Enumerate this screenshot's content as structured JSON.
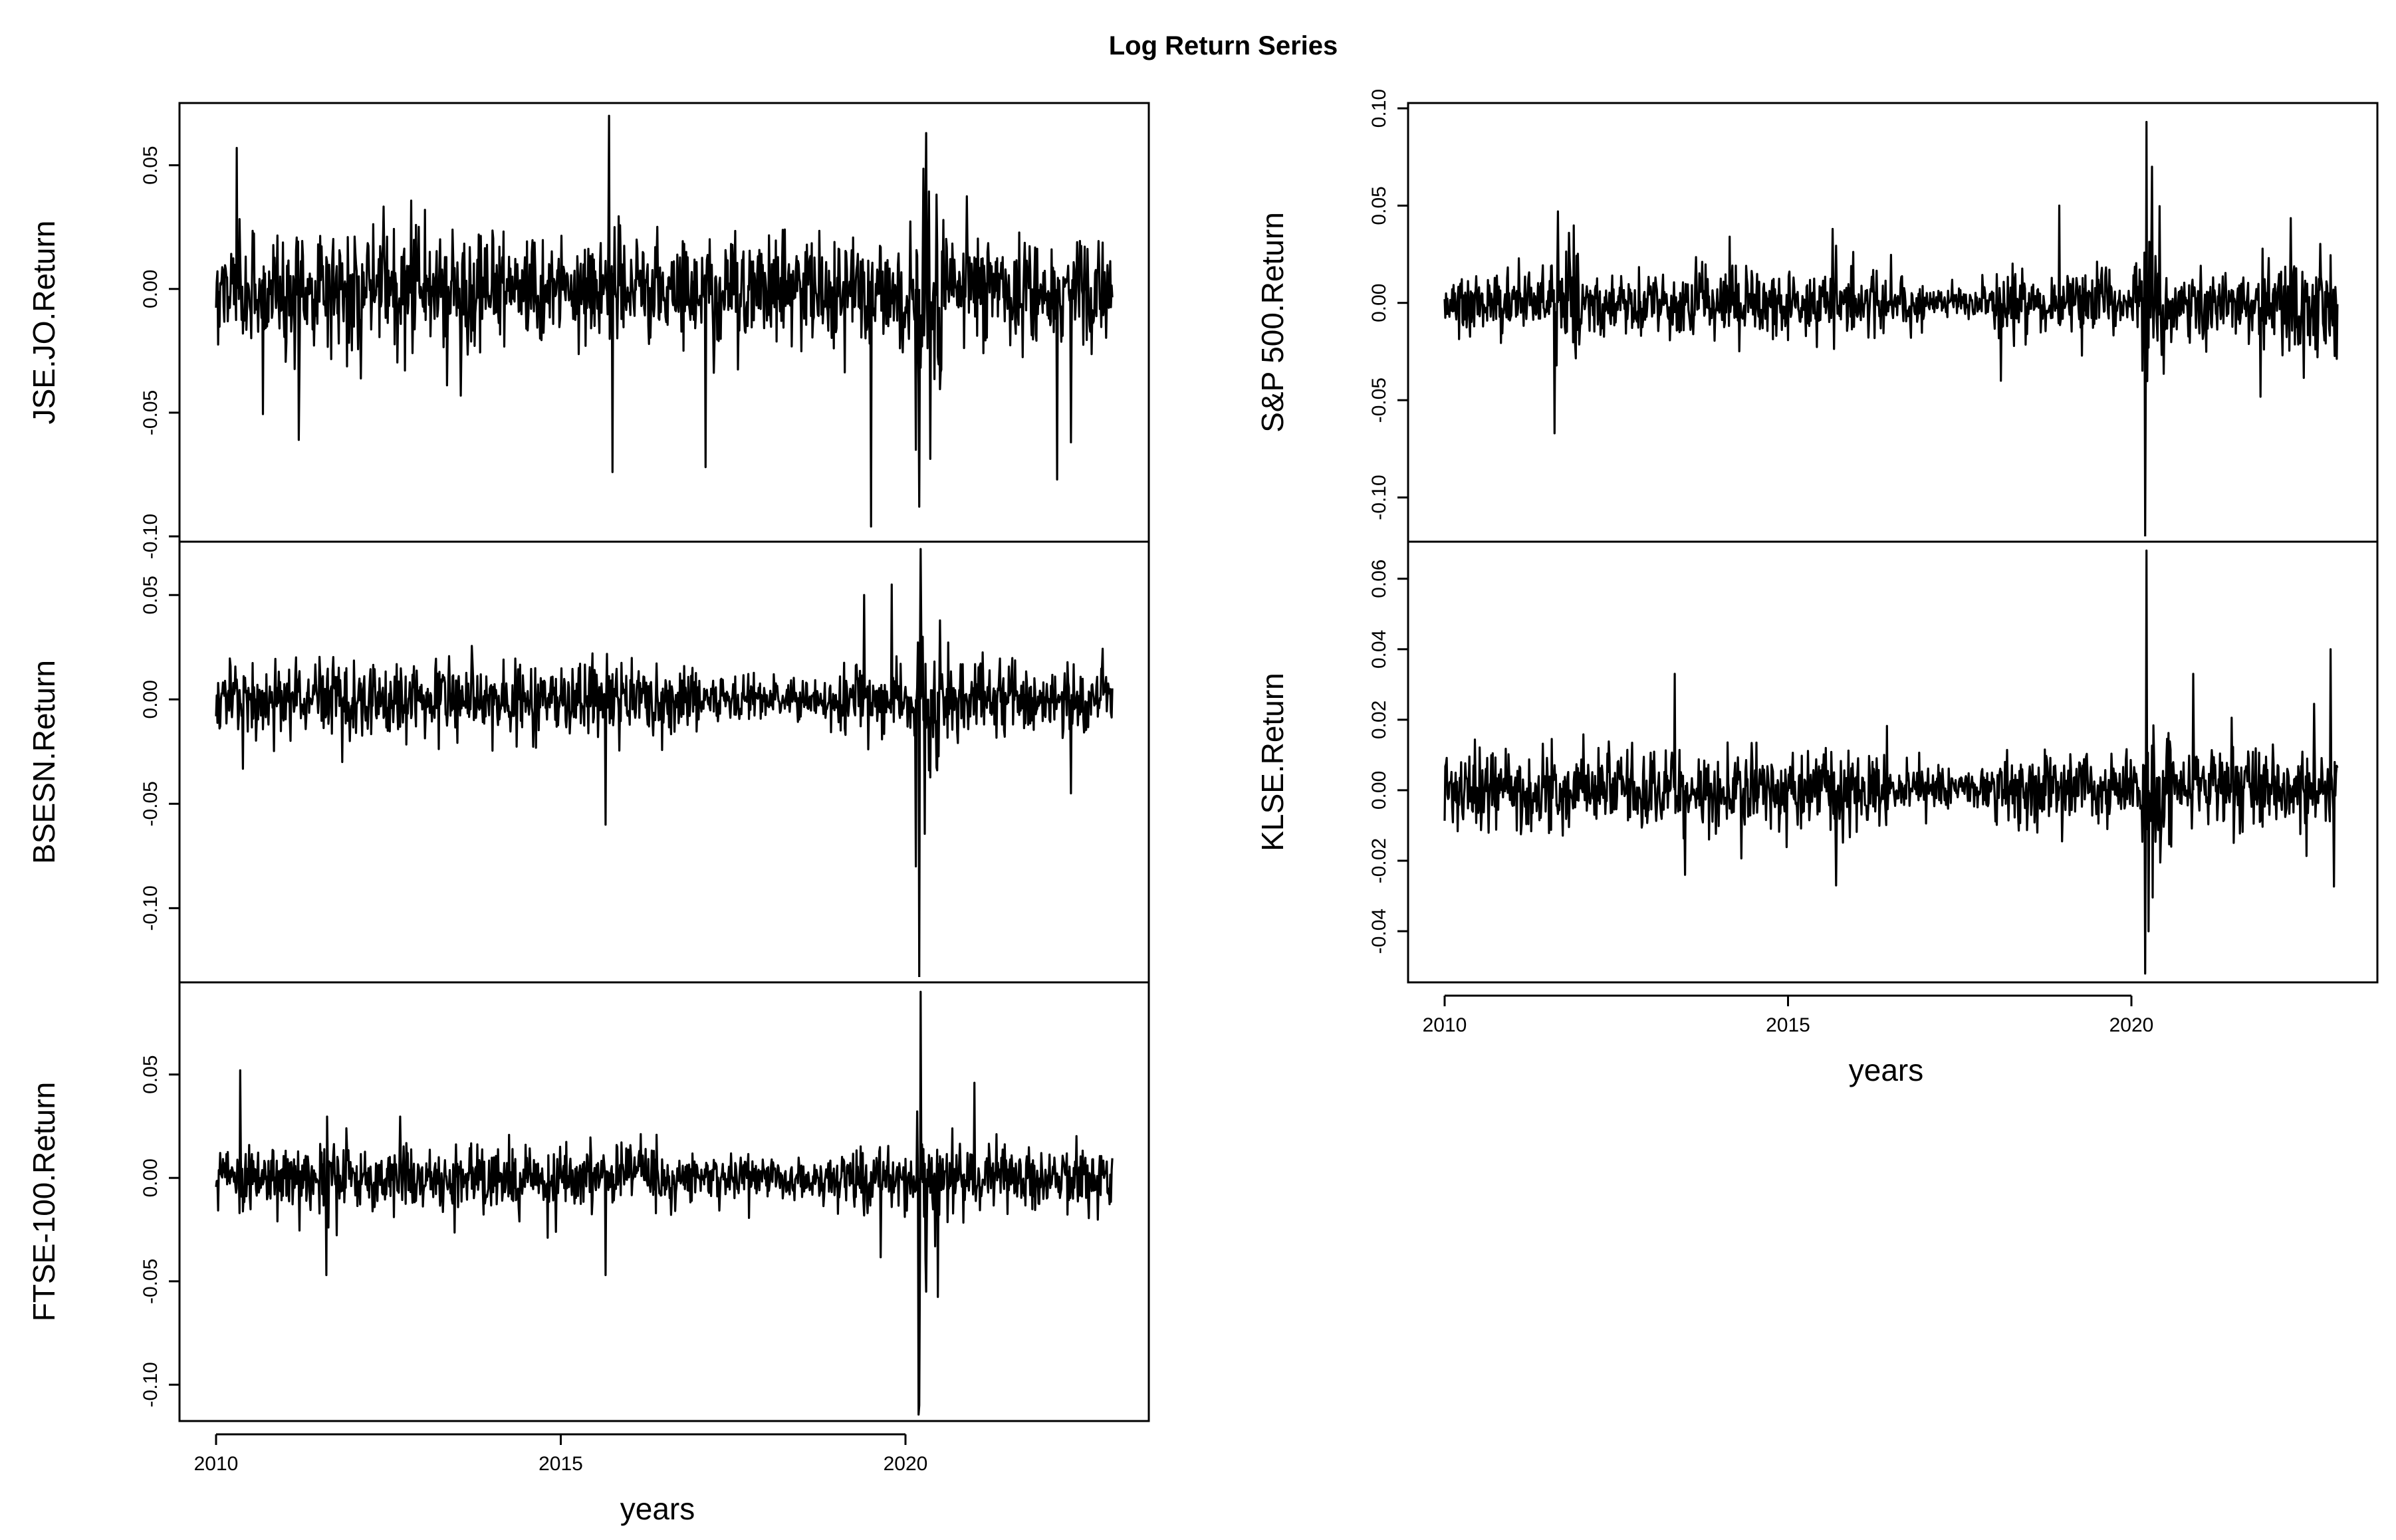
{
  "title": "Log Return Series",
  "chart_data": [
    {
      "type": "line",
      "id": "jse",
      "ylabel": "JSE.JO.Return",
      "xlabel": "",
      "xlim": [
        2009.5,
        2023.6
      ],
      "ylim": [
        -0.1,
        0.073
      ],
      "yticks": [
        -0.1,
        -0.05,
        0.0,
        0.05
      ],
      "ytick_labels": [
        "-0.10",
        "-0.05",
        "0.00",
        "0.05"
      ],
      "xticks": [],
      "base_sd": 0.0115,
      "spikes": [
        [
          2010.3,
          0.057
        ],
        [
          2011.2,
          -0.061
        ],
        [
          2015.7,
          0.07
        ],
        [
          2015.75,
          -0.074
        ],
        [
          2017.1,
          -0.072
        ],
        [
          2019.5,
          -0.096
        ],
        [
          2020.2,
          -0.088
        ],
        [
          2020.3,
          0.063
        ],
        [
          2020.15,
          -0.065
        ],
        [
          2022.2,
          -0.077
        ],
        [
          2022.4,
          -0.062
        ]
      ],
      "calm": [],
      "turbulent": [
        [
          2020.15,
          2020.6,
          2.0
        ]
      ]
    },
    {
      "type": "line",
      "id": "bsesn",
      "ylabel": "BSESN.Return",
      "xlabel": "",
      "xlim": [
        2009.5,
        2023.6
      ],
      "ylim": [
        -0.133,
        0.073
      ],
      "yticks": [
        -0.1,
        -0.05,
        0.0,
        0.05
      ],
      "ytick_labels": [
        "-0.10",
        "-0.05",
        "0.00",
        "0.05"
      ],
      "xticks": [],
      "base_sd": 0.0085,
      "spikes": [
        [
          2015.65,
          -0.06
        ],
        [
          2019.4,
          0.05
        ],
        [
          2019.8,
          0.055
        ],
        [
          2020.2,
          -0.133
        ],
        [
          2020.22,
          0.072
        ],
        [
          2020.15,
          -0.08
        ],
        [
          2022.4,
          -0.045
        ]
      ],
      "calm": [
        [
          2017.0,
          2019.0,
          0.55
        ]
      ],
      "turbulent": [
        [
          2020.15,
          2020.5,
          2.2
        ],
        [
          2011.5,
          2012.0,
          1.3
        ]
      ]
    },
    {
      "type": "line",
      "id": "ftse",
      "ylabel": "FTSE-100.Return",
      "xlabel": "years",
      "xlim": [
        2009.5,
        2023.6
      ],
      "ylim": [
        -0.115,
        0.092
      ],
      "yticks": [
        -0.1,
        -0.05,
        0.0,
        0.05
      ],
      "ytick_labels": [
        "-0.10",
        "-0.05",
        "0.00",
        "0.05"
      ],
      "xticks": [
        2010,
        2015,
        2020
      ],
      "base_sd": 0.008,
      "spikes": [
        [
          2010.35,
          0.052
        ],
        [
          2011.6,
          -0.047
        ],
        [
          2015.65,
          -0.047
        ],
        [
          2020.2,
          -0.11
        ],
        [
          2020.22,
          0.09
        ],
        [
          2020.3,
          -0.055
        ],
        [
          2021.0,
          0.046
        ]
      ],
      "calm": [
        [
          2017.0,
          2019.0,
          0.6
        ]
      ],
      "turbulent": [
        [
          2020.15,
          2020.5,
          2.2
        ],
        [
          2011.5,
          2012.0,
          1.5
        ]
      ]
    },
    {
      "type": "line",
      "id": "sp500",
      "ylabel": "S&P 500.Return",
      "xlabel": "",
      "xlim": [
        2009.5,
        2023.6
      ],
      "ylim": [
        -0.12,
        0.1
      ],
      "yticks": [
        -0.1,
        -0.05,
        0.0,
        0.05,
        0.1
      ],
      "ytick_labels": [
        "-0.10",
        "-0.05",
        "0.00",
        "0.05",
        "0.10"
      ],
      "xticks": [],
      "base_sd": 0.0085,
      "spikes": [
        [
          2011.6,
          -0.067
        ],
        [
          2011.65,
          0.047
        ],
        [
          2015.65,
          0.038
        ],
        [
          2018.1,
          -0.04
        ],
        [
          2018.95,
          0.05
        ],
        [
          2020.2,
          -0.12
        ],
        [
          2020.22,
          0.093
        ],
        [
          2020.3,
          0.07
        ]
      ],
      "calm": [
        [
          2017.0,
          2018.0,
          0.5
        ]
      ],
      "turbulent": [
        [
          2020.15,
          2020.5,
          2.4
        ],
        [
          2011.5,
          2012.0,
          1.6
        ],
        [
          2022.0,
          2023.0,
          1.6
        ]
      ]
    },
    {
      "type": "line",
      "id": "klse",
      "ylabel": "KLSE.Return",
      "xlabel": "years",
      "xlim": [
        2009.5,
        2023.6
      ],
      "ylim": [
        -0.053,
        0.069
      ],
      "yticks": [
        -0.04,
        -0.02,
        0.0,
        0.02,
        0.04,
        0.06
      ],
      "ytick_labels": [
        "-0.04",
        "-0.02",
        "0.00",
        "0.02",
        "0.04",
        "0.06"
      ],
      "xticks": [
        2010,
        2015,
        2020
      ],
      "base_sd": 0.0055,
      "spikes": [
        [
          2013.35,
          0.033
        ],
        [
          2013.5,
          -0.024
        ],
        [
          2015.7,
          -0.027
        ],
        [
          2020.2,
          -0.052
        ],
        [
          2020.22,
          0.068
        ],
        [
          2020.25,
          -0.04
        ],
        [
          2020.9,
          0.033
        ],
        [
          2022.9,
          0.04
        ]
      ],
      "calm": [
        [
          2016.5,
          2018.0,
          0.6
        ]
      ],
      "turbulent": [
        [
          2020.15,
          2020.6,
          2.0
        ]
      ]
    }
  ]
}
